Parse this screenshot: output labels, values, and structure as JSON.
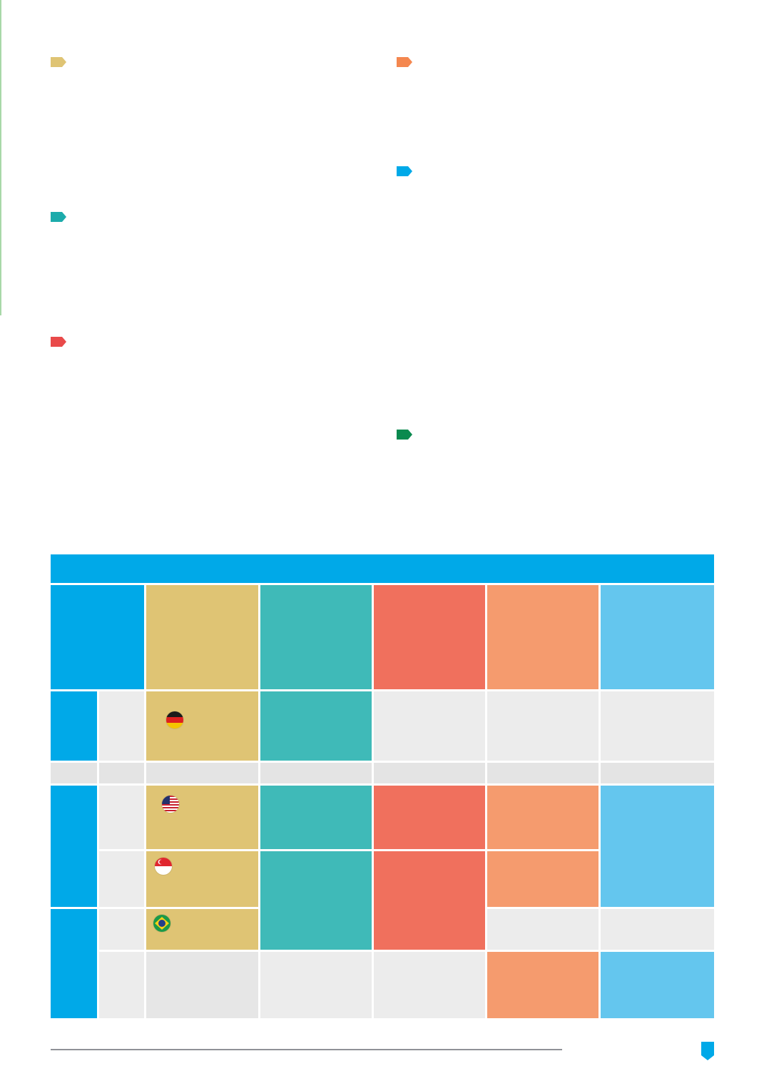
{
  "colors": {
    "gold": "#dfc474",
    "teal": "#3fbab8",
    "coral": "#f0705d",
    "salmon": "#f59b6e",
    "sky": "#64c6ee",
    "blue": "#00a9e8",
    "grey": "#ececec",
    "grey_dark": "#e4e4e4",
    "orange_tag": "#f4874f",
    "green_tag": "#0a8a4f",
    "red_tag": "#e94a4a",
    "teal_tag": "#1cabab",
    "gold_tag": "#dfc474",
    "blue_tag": "#00a9e8"
  },
  "section_markers": [
    {
      "color": "gold",
      "icon": "tag-arrow-icon"
    },
    {
      "color": "teal",
      "icon": "tag-arrow-icon"
    },
    {
      "color": "red",
      "icon": "tag-arrow-icon"
    },
    {
      "color": "orange",
      "icon": "tag-arrow-icon"
    },
    {
      "color": "blue",
      "icon": "tag-arrow-icon"
    },
    {
      "color": "green",
      "icon": "tag-arrow-icon"
    }
  ],
  "table": {
    "flags": [
      "germany-flag-icon",
      "usa-flag-icon",
      "singapore-flag-icon",
      "brazil-flag-icon"
    ]
  },
  "footer": {
    "badge_icon": "shield-page-badge-icon"
  }
}
